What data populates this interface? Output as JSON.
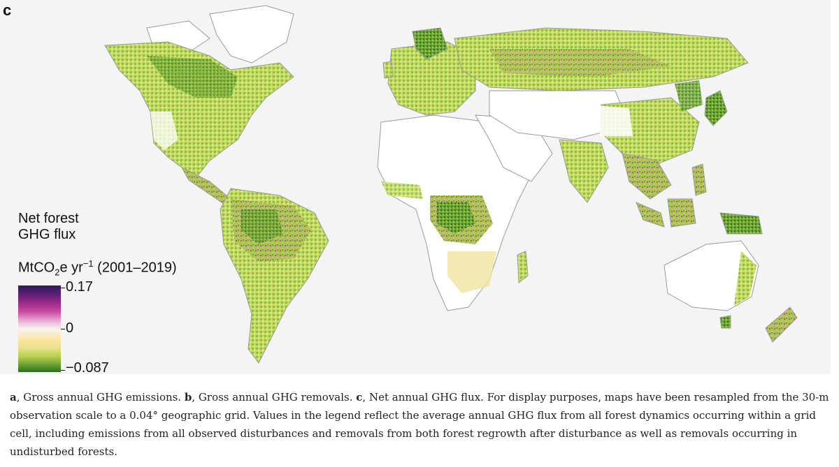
{
  "panel_letter": "c",
  "legend": {
    "title_line1": "Net forest",
    "title_line2": "GHG flux",
    "units_pre": "MtCO",
    "units_sub": "2",
    "units_mid": "e yr",
    "units_sup": "−1",
    "units_post": " (2001–2019)",
    "max_label": "0.17",
    "mid_label": "0",
    "min_label": "−0.087",
    "max_value": 0.17,
    "mid_value": 0,
    "min_value": -0.087
  },
  "colors": {
    "ocean": "#f4f4f4",
    "land_no_forest": "#ffffff",
    "border": "#9a9a9a",
    "no_data": "#b8b8b8",
    "sink_strong": "#2f6e22",
    "sink_medium": "#8fbf3a",
    "sink_weak": "#f3e4a0",
    "source_weak": "#e7a6cf",
    "source_strong": "#9b2a8a"
  },
  "caption": {
    "a_letter": "a",
    "a_text": ", Gross annual GHG emissions. ",
    "b_letter": "b",
    "b_text": ", Gross annual GHG removals. ",
    "c_letter": "c",
    "c_text": ", Net annual GHG flux. For display purposes, maps have been resampled from the 30-m observation scale to a 0.04° geographic grid. Values in the legend reflect the average annual GHG flux from all forest dynamics occurring within a grid cell, including emissions from all observed disturbances and removals from both forest regrowth after disturbance as well as removals occurring in undisturbed forests."
  }
}
